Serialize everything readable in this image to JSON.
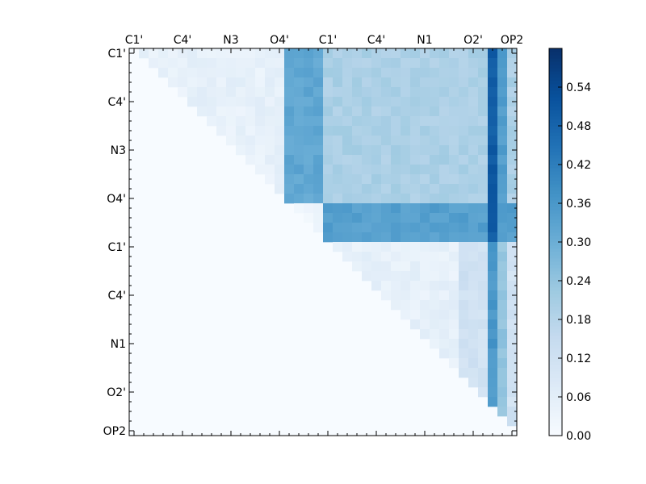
{
  "chart_data": {
    "type": "heatmap",
    "title": "",
    "xlabel": "",
    "ylabel": "",
    "n": 40,
    "x_tick_labels": [
      "C1'",
      "C4'",
      "N3",
      "O4'",
      "C1'",
      "C4'",
      "N1",
      "O2'",
      "OP2"
    ],
    "y_tick_labels": [
      "C1'",
      "C4'",
      "N3",
      "O4'",
      "C1'",
      "C4'",
      "N1",
      "O2'",
      "OP2"
    ],
    "x_tick_positions": [
      0.5,
      5.5,
      10.5,
      15.5,
      20.5,
      25.5,
      30.5,
      35.5,
      39.5
    ],
    "y_tick_positions": [
      0.5,
      5.5,
      10.5,
      15.5,
      20.5,
      25.5,
      30.5,
      35.5,
      39.5
    ],
    "colorbar": {
      "vmin": 0.0,
      "vmax": 0.6,
      "ticks": [
        "0.00",
        "0.06",
        "0.12",
        "0.18",
        "0.24",
        "0.30",
        "0.36",
        "0.42",
        "0.48",
        "0.54"
      ],
      "tick_values": [
        0.0,
        0.06,
        0.12,
        0.18,
        0.24,
        0.3,
        0.36,
        0.42,
        0.48,
        0.54
      ],
      "colormap": "Blues"
    },
    "cells": [
      {
        "region": "first residue intra block",
        "rows": [
          0,
          15
        ],
        "cols": [
          1,
          15
        ],
        "mean_value": 0.05
      },
      {
        "region": "first residue x second residue block",
        "rows": [
          0,
          15
        ],
        "cols": [
          16,
          39
        ],
        "mean_value": 0.22
      },
      {
        "region": "second residue C1' rows",
        "rows": [
          16,
          19
        ],
        "cols": [
          19,
          39
        ],
        "mean_value": 0.34
      },
      {
        "region": "second residue intra block",
        "rows": [
          20,
          38
        ],
        "cols": [
          20,
          39
        ],
        "mean_value": 0.07
      },
      {
        "region": "OP2 column",
        "rows": [
          0,
          38
        ],
        "cols": [
          37,
          38
        ],
        "mean_value": 0.45
      }
    ]
  }
}
